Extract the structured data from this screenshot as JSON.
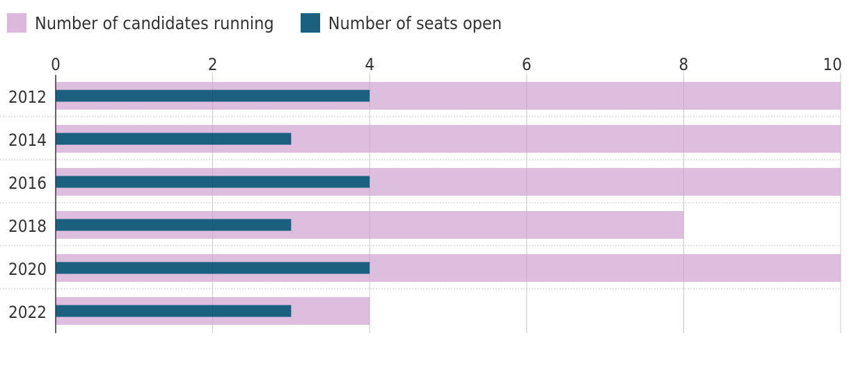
{
  "legend": {
    "items": [
      {
        "label": "Number of candidates running",
        "color": "#dbb8dc"
      },
      {
        "label": "Number of seats open",
        "color": "#1c6080"
      }
    ]
  },
  "chart_data": {
    "type": "bar",
    "orientation": "horizontal",
    "categories": [
      "2012",
      "2014",
      "2016",
      "2018",
      "2020",
      "2022"
    ],
    "series": [
      {
        "name": "Number of candidates running",
        "color": "#dbb8dc",
        "values": [
          10,
          10,
          10,
          8,
          10,
          4
        ]
      },
      {
        "name": "Number of seats open",
        "color": "#1c6080",
        "values": [
          4,
          3,
          4,
          3,
          4,
          3
        ]
      }
    ],
    "xlim": [
      0,
      10
    ],
    "x_ticks": [
      "0",
      "2",
      "4",
      "6",
      "8",
      "10"
    ],
    "x_axis_position": "top",
    "grid": true,
    "legend_position": "top-left",
    "title": "",
    "xlabel": "",
    "ylabel": ""
  }
}
